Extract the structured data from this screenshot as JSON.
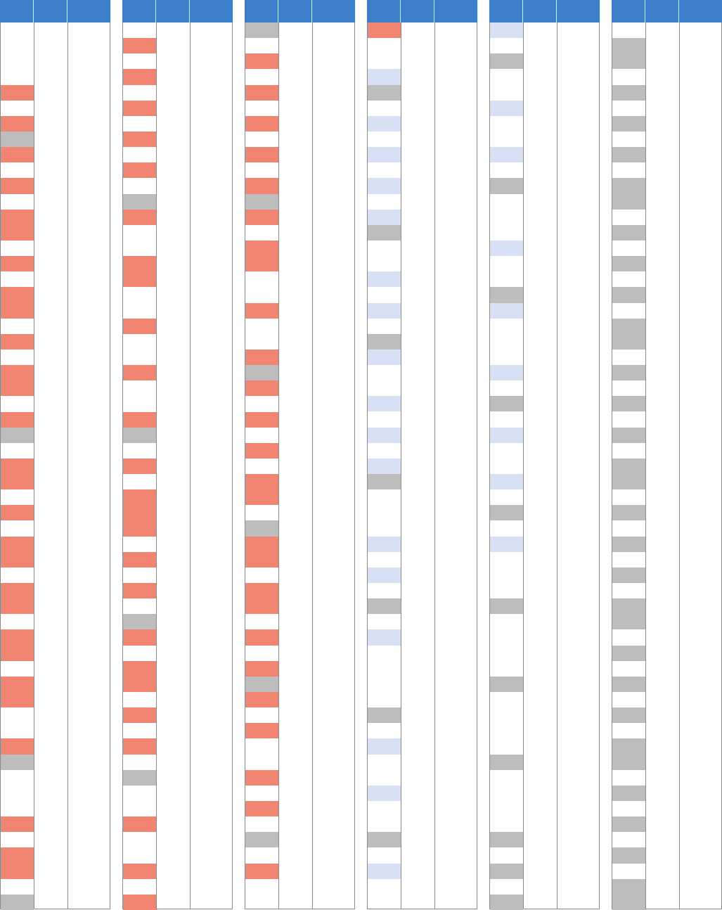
{
  "colors": {
    "header": "#3b7fcb",
    "red": "#f28571",
    "gray": "#bdbdbd",
    "blue": "#d7e0f4"
  },
  "row_count": 57,
  "tables": [
    {
      "name": "table-1",
      "headers": [
        "",
        "",
        ""
      ],
      "cells": [
        {
          "row": 4,
          "span": 1,
          "status": "red"
        },
        {
          "row": 6,
          "span": 1,
          "status": "red"
        },
        {
          "row": 7,
          "span": 1,
          "status": "gray"
        },
        {
          "row": 8,
          "span": 1,
          "status": "red"
        },
        {
          "row": 10,
          "span": 1,
          "status": "red"
        },
        {
          "row": 12,
          "span": 2,
          "status": "red"
        },
        {
          "row": 15,
          "span": 1,
          "status": "red"
        },
        {
          "row": 17,
          "span": 2,
          "status": "red"
        },
        {
          "row": 20,
          "span": 1,
          "status": "red"
        },
        {
          "row": 22,
          "span": 2,
          "status": "red"
        },
        {
          "row": 25,
          "span": 1,
          "status": "red"
        },
        {
          "row": 26,
          "span": 1,
          "status": "gray"
        },
        {
          "row": 28,
          "span": 2,
          "status": "red"
        },
        {
          "row": 31,
          "span": 1,
          "status": "red"
        },
        {
          "row": 33,
          "span": 2,
          "status": "red"
        },
        {
          "row": 36,
          "span": 2,
          "status": "red"
        },
        {
          "row": 39,
          "span": 2,
          "status": "red"
        },
        {
          "row": 42,
          "span": 2,
          "status": "red"
        },
        {
          "row": 46,
          "span": 1,
          "status": "red"
        },
        {
          "row": 47,
          "span": 1,
          "status": "gray"
        },
        {
          "row": 51,
          "span": 1,
          "status": "red"
        },
        {
          "row": 53,
          "span": 2,
          "status": "red"
        },
        {
          "row": 56,
          "span": 1,
          "status": "gray"
        }
      ]
    },
    {
      "name": "table-2",
      "headers": [
        "",
        "",
        ""
      ],
      "cells": [
        {
          "row": 1,
          "span": 1,
          "status": "red"
        },
        {
          "row": 3,
          "span": 1,
          "status": "red"
        },
        {
          "row": 5,
          "span": 1,
          "status": "red"
        },
        {
          "row": 7,
          "span": 1,
          "status": "red"
        },
        {
          "row": 9,
          "span": 1,
          "status": "red"
        },
        {
          "row": 11,
          "span": 1,
          "status": "gray"
        },
        {
          "row": 12,
          "span": 1,
          "status": "red"
        },
        {
          "row": 15,
          "span": 2,
          "status": "red"
        },
        {
          "row": 19,
          "span": 1,
          "status": "red"
        },
        {
          "row": 22,
          "span": 1,
          "status": "red"
        },
        {
          "row": 25,
          "span": 1,
          "status": "red"
        },
        {
          "row": 26,
          "span": 1,
          "status": "gray"
        },
        {
          "row": 28,
          "span": 1,
          "status": "red"
        },
        {
          "row": 30,
          "span": 3,
          "status": "red"
        },
        {
          "row": 34,
          "span": 1,
          "status": "red"
        },
        {
          "row": 36,
          "span": 1,
          "status": "red"
        },
        {
          "row": 38,
          "span": 1,
          "status": "gray"
        },
        {
          "row": 39,
          "span": 1,
          "status": "red"
        },
        {
          "row": 41,
          "span": 2,
          "status": "red"
        },
        {
          "row": 44,
          "span": 1,
          "status": "red"
        },
        {
          "row": 46,
          "span": 1,
          "status": "red"
        },
        {
          "row": 48,
          "span": 1,
          "status": "gray"
        },
        {
          "row": 51,
          "span": 1,
          "status": "red"
        },
        {
          "row": 54,
          "span": 1,
          "status": "red"
        },
        {
          "row": 56,
          "span": 1,
          "status": "red"
        }
      ]
    },
    {
      "name": "table-3",
      "headers": [
        "",
        "",
        ""
      ],
      "cells": [
        {
          "row": 0,
          "span": 1,
          "status": "gray"
        },
        {
          "row": 2,
          "span": 1,
          "status": "red"
        },
        {
          "row": 4,
          "span": 1,
          "status": "red"
        },
        {
          "row": 6,
          "span": 1,
          "status": "red"
        },
        {
          "row": 8,
          "span": 1,
          "status": "red"
        },
        {
          "row": 10,
          "span": 1,
          "status": "red"
        },
        {
          "row": 11,
          "span": 1,
          "status": "gray"
        },
        {
          "row": 12,
          "span": 1,
          "status": "red"
        },
        {
          "row": 14,
          "span": 2,
          "status": "red"
        },
        {
          "row": 18,
          "span": 1,
          "status": "red"
        },
        {
          "row": 21,
          "span": 1,
          "status": "red"
        },
        {
          "row": 22,
          "span": 1,
          "status": "gray"
        },
        {
          "row": 23,
          "span": 1,
          "status": "red"
        },
        {
          "row": 25,
          "span": 1,
          "status": "red"
        },
        {
          "row": 27,
          "span": 1,
          "status": "red"
        },
        {
          "row": 29,
          "span": 2,
          "status": "red"
        },
        {
          "row": 32,
          "span": 1,
          "status": "gray"
        },
        {
          "row": 33,
          "span": 2,
          "status": "red"
        },
        {
          "row": 36,
          "span": 2,
          "status": "red"
        },
        {
          "row": 39,
          "span": 1,
          "status": "red"
        },
        {
          "row": 41,
          "span": 1,
          "status": "red"
        },
        {
          "row": 42,
          "span": 1,
          "status": "gray"
        },
        {
          "row": 43,
          "span": 1,
          "status": "red"
        },
        {
          "row": 45,
          "span": 1,
          "status": "red"
        },
        {
          "row": 48,
          "span": 1,
          "status": "red"
        },
        {
          "row": 50,
          "span": 1,
          "status": "red"
        },
        {
          "row": 52,
          "span": 1,
          "status": "gray"
        },
        {
          "row": 54,
          "span": 1,
          "status": "red"
        }
      ]
    },
    {
      "name": "table-4",
      "headers": [
        "",
        "",
        ""
      ],
      "cells": [
        {
          "row": 0,
          "span": 1,
          "status": "red"
        },
        {
          "row": 3,
          "span": 1,
          "status": "blue"
        },
        {
          "row": 4,
          "span": 1,
          "status": "gray"
        },
        {
          "row": 6,
          "span": 1,
          "status": "blue"
        },
        {
          "row": 8,
          "span": 1,
          "status": "blue"
        },
        {
          "row": 10,
          "span": 1,
          "status": "blue"
        },
        {
          "row": 12,
          "span": 1,
          "status": "blue"
        },
        {
          "row": 13,
          "span": 1,
          "status": "gray"
        },
        {
          "row": 16,
          "span": 1,
          "status": "blue"
        },
        {
          "row": 18,
          "span": 1,
          "status": "blue"
        },
        {
          "row": 20,
          "span": 1,
          "status": "gray"
        },
        {
          "row": 21,
          "span": 1,
          "status": "blue"
        },
        {
          "row": 24,
          "span": 1,
          "status": "blue"
        },
        {
          "row": 26,
          "span": 1,
          "status": "blue"
        },
        {
          "row": 28,
          "span": 1,
          "status": "blue"
        },
        {
          "row": 29,
          "span": 1,
          "status": "gray"
        },
        {
          "row": 33,
          "span": 1,
          "status": "blue"
        },
        {
          "row": 35,
          "span": 1,
          "status": "blue"
        },
        {
          "row": 37,
          "span": 1,
          "status": "gray"
        },
        {
          "row": 39,
          "span": 1,
          "status": "blue"
        },
        {
          "row": 44,
          "span": 1,
          "status": "gray"
        },
        {
          "row": 46,
          "span": 1,
          "status": "blue"
        },
        {
          "row": 49,
          "span": 1,
          "status": "blue"
        },
        {
          "row": 52,
          "span": 1,
          "status": "gray"
        },
        {
          "row": 54,
          "span": 1,
          "status": "blue"
        }
      ]
    },
    {
      "name": "table-5",
      "headers": [
        "",
        "",
        ""
      ],
      "cells": [
        {
          "row": 0,
          "span": 1,
          "status": "blue"
        },
        {
          "row": 2,
          "span": 1,
          "status": "gray"
        },
        {
          "row": 5,
          "span": 1,
          "status": "blue"
        },
        {
          "row": 8,
          "span": 1,
          "status": "blue"
        },
        {
          "row": 10,
          "span": 1,
          "status": "gray"
        },
        {
          "row": 14,
          "span": 1,
          "status": "blue"
        },
        {
          "row": 17,
          "span": 1,
          "status": "gray"
        },
        {
          "row": 18,
          "span": 1,
          "status": "blue"
        },
        {
          "row": 22,
          "span": 1,
          "status": "blue"
        },
        {
          "row": 24,
          "span": 1,
          "status": "gray"
        },
        {
          "row": 26,
          "span": 1,
          "status": "blue"
        },
        {
          "row": 29,
          "span": 1,
          "status": "blue"
        },
        {
          "row": 31,
          "span": 1,
          "status": "gray"
        },
        {
          "row": 33,
          "span": 1,
          "status": "blue"
        },
        {
          "row": 37,
          "span": 1,
          "status": "gray"
        },
        {
          "row": 42,
          "span": 1,
          "status": "gray"
        },
        {
          "row": 47,
          "span": 1,
          "status": "gray"
        },
        {
          "row": 52,
          "span": 1,
          "status": "gray"
        },
        {
          "row": 54,
          "span": 1,
          "status": "gray"
        },
        {
          "row": 56,
          "span": 1,
          "status": "gray"
        }
      ]
    },
    {
      "name": "table-6",
      "headers": [
        "",
        "",
        ""
      ],
      "cells": [
        {
          "row": 1,
          "span": 2,
          "status": "gray"
        },
        {
          "row": 4,
          "span": 1,
          "status": "gray"
        },
        {
          "row": 6,
          "span": 1,
          "status": "gray"
        },
        {
          "row": 8,
          "span": 1,
          "status": "gray"
        },
        {
          "row": 10,
          "span": 2,
          "status": "gray"
        },
        {
          "row": 13,
          "span": 1,
          "status": "gray"
        },
        {
          "row": 15,
          "span": 1,
          "status": "gray"
        },
        {
          "row": 17,
          "span": 1,
          "status": "gray"
        },
        {
          "row": 19,
          "span": 2,
          "status": "gray"
        },
        {
          "row": 22,
          "span": 1,
          "status": "gray"
        },
        {
          "row": 24,
          "span": 1,
          "status": "gray"
        },
        {
          "row": 26,
          "span": 1,
          "status": "gray"
        },
        {
          "row": 28,
          "span": 2,
          "status": "gray"
        },
        {
          "row": 31,
          "span": 1,
          "status": "gray"
        },
        {
          "row": 33,
          "span": 1,
          "status": "gray"
        },
        {
          "row": 35,
          "span": 1,
          "status": "gray"
        },
        {
          "row": 37,
          "span": 2,
          "status": "gray"
        },
        {
          "row": 40,
          "span": 1,
          "status": "gray"
        },
        {
          "row": 42,
          "span": 1,
          "status": "gray"
        },
        {
          "row": 44,
          "span": 1,
          "status": "gray"
        },
        {
          "row": 46,
          "span": 2,
          "status": "gray"
        },
        {
          "row": 49,
          "span": 1,
          "status": "gray"
        },
        {
          "row": 51,
          "span": 1,
          "status": "gray"
        },
        {
          "row": 53,
          "span": 1,
          "status": "gray"
        },
        {
          "row": 55,
          "span": 2,
          "status": "gray"
        }
      ]
    }
  ]
}
